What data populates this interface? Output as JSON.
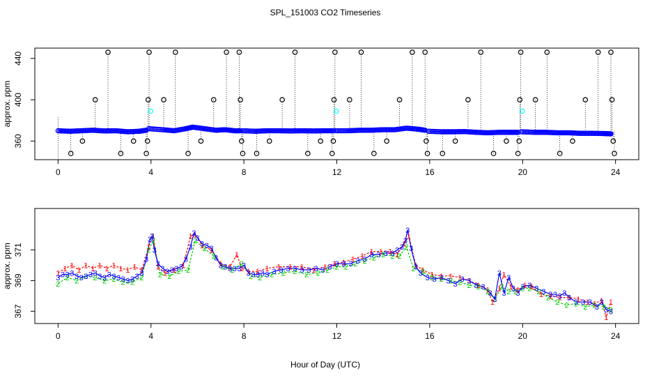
{
  "chart_data": [
    {
      "type": "scatter",
      "title": "SPL_151003  CO2 Timeseries",
      "xlabel": "",
      "ylabel": "approx. ppm",
      "xlim": [
        -1.0,
        25.0
      ],
      "ylim": [
        342,
        450
      ],
      "xticks": [
        0,
        4,
        8,
        12,
        16,
        20,
        24
      ],
      "yticks": [
        360,
        400,
        440
      ],
      "xtick_labels": [
        "0",
        "4",
        "8",
        "12",
        "16",
        "20",
        "24"
      ],
      "ytick_labels": [
        "360",
        "400",
        "440"
      ],
      "baseline_segments": [
        {
          "x": [
            0.0,
            0.5,
            1.0,
            1.5,
            2.0,
            2.5,
            3.0,
            3.5,
            3.8
          ],
          "y": [
            370,
            369.5,
            370,
            370.5,
            369.8,
            370,
            369,
            369.5,
            370.5
          ]
        },
        {
          "x": [
            3.9,
            4.5,
            5.0,
            5.5,
            5.8,
            6.3,
            6.8,
            7.2,
            7.6,
            7.85
          ],
          "y": [
            372,
            371,
            370,
            372,
            373.5,
            372,
            370.5,
            371,
            370,
            370
          ]
        },
        {
          "x": [
            7.95,
            8.5,
            9.0,
            9.5,
            10.0,
            10.5,
            11.0,
            11.5,
            11.85
          ],
          "y": [
            370,
            369.5,
            370,
            370,
            369.8,
            370,
            369.8,
            370,
            370
          ]
        },
        {
          "x": [
            11.95,
            12.5,
            13.0,
            13.5,
            14.0,
            14.5,
            15.0,
            15.5,
            15.8
          ],
          "y": [
            370,
            370,
            370.5,
            370.5,
            371,
            371,
            372.5,
            371.5,
            370.5
          ]
        },
        {
          "x": [
            15.95,
            16.5,
            17.0,
            17.5,
            18.0,
            18.5,
            19.0,
            19.5,
            19.8
          ],
          "y": [
            369.5,
            369,
            369,
            369.2,
            368.5,
            368,
            368.5,
            368.5,
            368.5
          ]
        },
        {
          "x": [
            19.95,
            20.5,
            21.0,
            21.5,
            22.0,
            22.5,
            23.0,
            23.5,
            23.8
          ],
          "y": [
            369,
            368.5,
            368.5,
            368,
            368,
            367.5,
            367.5,
            367.3,
            367
          ]
        }
      ],
      "flag_points": [
        {
          "x": 0.55,
          "y": 348
        },
        {
          "x": 1.05,
          "y": 360
        },
        {
          "x": 1.6,
          "y": 400
        },
        {
          "x": 2.15,
          "y": 446
        },
        {
          "x": 2.7,
          "y": 348
        },
        {
          "x": 3.25,
          "y": 360
        },
        {
          "x": 3.8,
          "y": 348
        },
        {
          "x": 3.85,
          "y": 360
        },
        {
          "x": 3.88,
          "y": 400
        },
        {
          "x": 3.92,
          "y": 446
        },
        {
          "x": 4.55,
          "y": 400
        },
        {
          "x": 5.05,
          "y": 446
        },
        {
          "x": 5.6,
          "y": 348
        },
        {
          "x": 6.15,
          "y": 360
        },
        {
          "x": 6.7,
          "y": 400
        },
        {
          "x": 7.25,
          "y": 446
        },
        {
          "x": 7.8,
          "y": 446
        },
        {
          "x": 7.85,
          "y": 400
        },
        {
          "x": 7.9,
          "y": 360
        },
        {
          "x": 7.95,
          "y": 348
        },
        {
          "x": 8.55,
          "y": 348
        },
        {
          "x": 9.1,
          "y": 360
        },
        {
          "x": 9.65,
          "y": 400
        },
        {
          "x": 10.2,
          "y": 446
        },
        {
          "x": 10.75,
          "y": 348
        },
        {
          "x": 11.3,
          "y": 360
        },
        {
          "x": 11.8,
          "y": 348
        },
        {
          "x": 11.85,
          "y": 360
        },
        {
          "x": 11.88,
          "y": 400
        },
        {
          "x": 11.92,
          "y": 446
        },
        {
          "x": 12.55,
          "y": 400
        },
        {
          "x": 13.05,
          "y": 446
        },
        {
          "x": 13.6,
          "y": 348
        },
        {
          "x": 14.15,
          "y": 360
        },
        {
          "x": 14.7,
          "y": 400
        },
        {
          "x": 15.25,
          "y": 446
        },
        {
          "x": 15.8,
          "y": 446
        },
        {
          "x": 15.85,
          "y": 360
        },
        {
          "x": 15.9,
          "y": 348
        },
        {
          "x": 16.55,
          "y": 348
        },
        {
          "x": 17.1,
          "y": 360
        },
        {
          "x": 17.65,
          "y": 400
        },
        {
          "x": 18.2,
          "y": 446
        },
        {
          "x": 18.75,
          "y": 348
        },
        {
          "x": 19.3,
          "y": 360
        },
        {
          "x": 19.8,
          "y": 348
        },
        {
          "x": 19.85,
          "y": 360
        },
        {
          "x": 19.88,
          "y": 400
        },
        {
          "x": 19.92,
          "y": 446
        },
        {
          "x": 20.55,
          "y": 400
        },
        {
          "x": 21.05,
          "y": 446
        },
        {
          "x": 21.6,
          "y": 348
        },
        {
          "x": 22.15,
          "y": 360
        },
        {
          "x": 22.7,
          "y": 400
        },
        {
          "x": 23.25,
          "y": 446
        },
        {
          "x": 23.8,
          "y": 446
        },
        {
          "x": 23.85,
          "y": 400
        },
        {
          "x": 23.9,
          "y": 360
        },
        {
          "x": 23.95,
          "y": 348
        }
      ],
      "cyan_points": [
        {
          "x": 3.98,
          "y": 389
        },
        {
          "x": 11.98,
          "y": 389
        },
        {
          "x": 19.98,
          "y": 389
        }
      ],
      "colors": {
        "line": "#0000ff",
        "baseline_points": "#0000ff",
        "flag_points": "#000000",
        "cyan": "#00ffff"
      }
    },
    {
      "type": "line",
      "title": "",
      "xlabel": "Hour of Day (UTC)",
      "ylabel": "approx. ppm",
      "xlim": [
        -1.0,
        25.0
      ],
      "ylim": [
        366.2,
        373.7
      ],
      "xticks": [
        0,
        4,
        8,
        12,
        16,
        20,
        24
      ],
      "yticks": [
        367,
        369,
        371
      ],
      "xtick_labels": [
        "0",
        "4",
        "8",
        "12",
        "16",
        "20",
        "24"
      ],
      "ytick_labels": [
        "367",
        "369",
        "371"
      ],
      "series": [
        {
          "name": "1",
          "symbol": "1",
          "color": "#ff0000",
          "x": [
            0.0,
            0.3,
            0.6,
            0.9,
            1.2,
            1.5,
            1.8,
            2.1,
            2.4,
            2.7,
            3.0,
            3.3,
            3.6,
            3.9,
            4.1,
            4.3,
            4.6,
            5.0,
            5.4,
            5.7,
            5.9,
            6.2,
            6.6,
            7.0,
            7.4,
            7.7,
            7.9,
            8.2,
            8.6,
            9.0,
            9.5,
            10.0,
            10.5,
            11.0,
            11.5,
            11.9,
            12.3,
            12.7,
            13.1,
            13.5,
            13.9,
            14.3,
            14.6,
            14.9,
            15.1,
            15.4,
            15.7,
            16.1,
            16.5,
            16.9,
            17.3,
            17.7,
            18.1,
            18.5,
            18.7,
            19.0,
            19.2,
            19.5,
            19.8,
            20.1,
            20.4,
            20.8,
            21.2,
            21.6,
            22.0,
            22.4,
            22.8,
            23.1,
            23.4,
            23.6,
            23.8
          ],
          "y": [
            369.5,
            369.8,
            370.0,
            369.7,
            370.0,
            369.8,
            370.0,
            369.8,
            370.0,
            369.8,
            369.7,
            369.9,
            369.7,
            371.2,
            371.9,
            369.9,
            369.5,
            369.7,
            370.0,
            371.9,
            372.0,
            371.3,
            371.0,
            370.1,
            369.9,
            370.7,
            369.8,
            369.6,
            369.6,
            369.8,
            369.9,
            369.9,
            369.9,
            369.7,
            369.9,
            370.1,
            370.2,
            370.4,
            370.6,
            370.9,
            370.9,
            370.9,
            370.7,
            371.4,
            371.9,
            370.0,
            369.7,
            369.4,
            369.3,
            369.3,
            369.2,
            369.0,
            368.7,
            368.4,
            367.6,
            368.5,
            369.4,
            368.6,
            368.4,
            368.7,
            368.6,
            368.1,
            368.0,
            367.9,
            367.9,
            367.8,
            367.6,
            367.5,
            367.7,
            366.6,
            367.6
          ]
        },
        {
          "name": "2",
          "symbol": "2",
          "color": "#00cc00",
          "x": [
            0.0,
            0.4,
            0.8,
            1.2,
            1.6,
            2.0,
            2.4,
            2.8,
            3.2,
            3.6,
            3.9,
            4.1,
            4.4,
            4.8,
            5.2,
            5.6,
            5.9,
            6.3,
            6.7,
            7.1,
            7.5,
            7.9,
            8.3,
            8.7,
            9.2,
            9.7,
            10.2,
            10.7,
            11.2,
            11.6,
            12.0,
            12.4,
            12.8,
            13.2,
            13.6,
            14.0,
            14.4,
            14.7,
            15.0,
            15.3,
            15.7,
            16.1,
            16.5,
            16.9,
            17.3,
            17.7,
            18.1,
            18.5,
            18.8,
            19.1,
            19.4,
            19.7,
            20.0,
            20.3,
            20.7,
            21.1,
            21.5,
            21.9,
            22.3,
            22.7,
            23.1,
            23.5,
            23.8
          ],
          "y": [
            368.8,
            369.2,
            369.0,
            369.3,
            369.2,
            369.0,
            369.1,
            368.9,
            368.9,
            369.2,
            371.0,
            371.6,
            369.4,
            369.3,
            369.6,
            369.7,
            371.6,
            371.1,
            370.6,
            369.9,
            369.7,
            370.1,
            369.3,
            369.2,
            369.4,
            369.5,
            369.6,
            369.4,
            369.5,
            369.7,
            369.9,
            369.9,
            370.1,
            370.3,
            370.5,
            370.7,
            370.6,
            370.6,
            371.2,
            369.8,
            369.6,
            369.2,
            369.1,
            369.0,
            368.9,
            368.7,
            368.6,
            368.3,
            367.8,
            368.6,
            368.3,
            368.3,
            368.5,
            368.5,
            368.3,
            367.9,
            367.6,
            367.4,
            367.5,
            367.3,
            367.4,
            367.3,
            367.1
          ]
        },
        {
          "name": "3",
          "symbol": "3",
          "color": "#0000ff",
          "x": [
            0.0,
            0.2,
            0.4,
            0.6,
            0.8,
            1.0,
            1.2,
            1.4,
            1.6,
            1.8,
            2.0,
            2.2,
            2.4,
            2.6,
            2.8,
            3.0,
            3.2,
            3.4,
            3.6,
            3.8,
            3.95,
            4.05,
            4.15,
            4.3,
            4.5,
            4.7,
            4.9,
            5.1,
            5.3,
            5.5,
            5.7,
            5.85,
            6.0,
            6.2,
            6.4,
            6.6,
            6.8,
            7.0,
            7.2,
            7.4,
            7.6,
            7.8,
            8.0,
            8.2,
            8.4,
            8.6,
            8.8,
            9.0,
            9.3,
            9.6,
            9.9,
            10.2,
            10.5,
            10.8,
            11.1,
            11.4,
            11.7,
            12.0,
            12.3,
            12.6,
            12.9,
            13.2,
            13.5,
            13.8,
            14.1,
            14.4,
            14.6,
            14.8,
            14.95,
            15.05,
            15.2,
            15.4,
            15.6,
            15.9,
            16.2,
            16.5,
            16.8,
            17.1,
            17.4,
            17.7,
            18.0,
            18.3,
            18.6,
            18.8,
            19.0,
            19.2,
            19.4,
            19.6,
            19.8,
            20.0,
            20.3,
            20.6,
            20.9,
            21.2,
            21.4,
            21.6,
            21.8,
            22.0,
            22.3,
            22.6,
            22.9,
            23.2,
            23.4,
            23.6,
            23.8
          ],
          "y": [
            369.2,
            369.4,
            369.4,
            369.5,
            369.3,
            369.2,
            369.3,
            369.4,
            369.5,
            369.3,
            369.2,
            369.4,
            369.3,
            369.2,
            369.1,
            369.0,
            369.1,
            369.3,
            369.5,
            370.4,
            371.7,
            371.9,
            371.0,
            370.1,
            369.8,
            369.6,
            369.7,
            369.8,
            369.9,
            370.4,
            371.2,
            372.1,
            371.8,
            371.4,
            371.3,
            371.1,
            370.5,
            370.0,
            369.9,
            369.8,
            369.8,
            369.8,
            370.0,
            369.5,
            369.4,
            369.4,
            369.5,
            369.4,
            369.6,
            369.7,
            369.8,
            369.8,
            369.7,
            369.7,
            369.8,
            369.7,
            369.9,
            370.1,
            370.1,
            370.1,
            370.3,
            370.4,
            370.7,
            370.7,
            370.8,
            370.8,
            371.0,
            371.2,
            371.6,
            372.3,
            371.1,
            369.9,
            369.5,
            369.2,
            369.1,
            369.2,
            369.0,
            368.8,
            369.1,
            369.0,
            368.7,
            368.6,
            368.2,
            367.8,
            369.5,
            368.2,
            369.2,
            368.5,
            368.2,
            368.6,
            368.7,
            368.5,
            368.3,
            368.1,
            368.1,
            368.0,
            368.2,
            367.9,
            367.6,
            367.6,
            367.6,
            367.3,
            367.6,
            367.1,
            367.0
          ]
        }
      ],
      "colors": {
        "line_1": "#ff0000",
        "line_2": "#00cc00",
        "line_3": "#0000ff"
      }
    }
  ]
}
